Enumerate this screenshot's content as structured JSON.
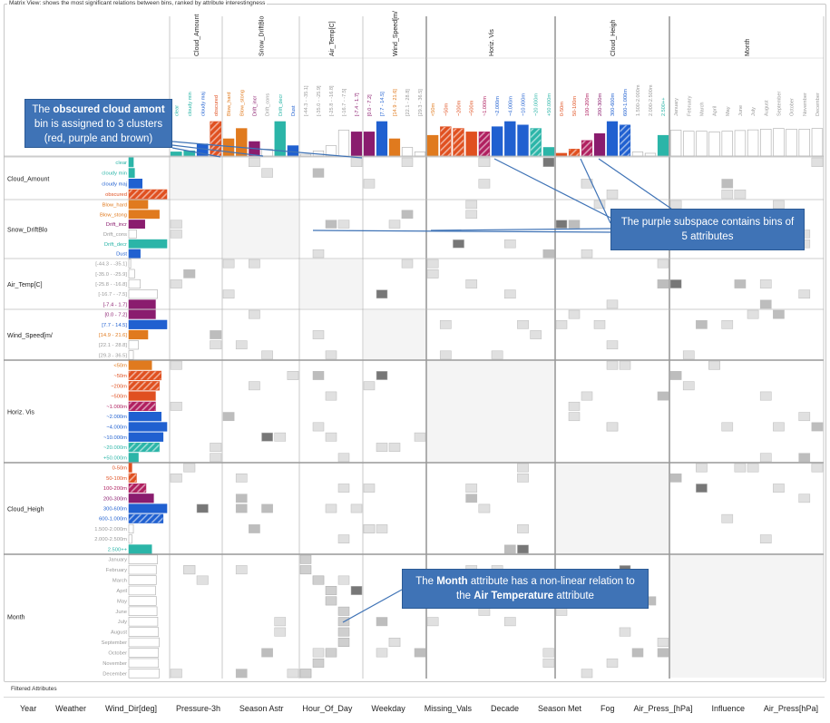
{
  "window_title": "Matrix View: shows the most significant relations between bins, ranked by attribute interestingness",
  "attributes": [
    {
      "name": "Cloud_Amount",
      "bins": [
        "clear",
        "cloudy min",
        "cloudy maj",
        "obscured"
      ],
      "colors": [
        "#2bb5a8",
        "#2bb5a8",
        "#2060d0",
        "#e05020"
      ],
      "hatch": [
        0,
        0,
        0,
        1
      ],
      "hist": [
        0.12,
        0.15,
        0.35,
        1.0
      ]
    },
    {
      "name": "Snow_DriftBlo",
      "bins": [
        "Blow_hard",
        "Blow_stong",
        "Drift_incr",
        "Drift_cons",
        "Drift_decr",
        "Dust"
      ],
      "colors": [
        "#e07a1e",
        "#e07a1e",
        "#8a1c6e",
        "#999999",
        "#2bb5a8",
        "#2060d0"
      ],
      "hatch": [
        0,
        0,
        0,
        0,
        0,
        0
      ],
      "hist": [
        0.5,
        0.8,
        0.42,
        0.2,
        1.0,
        0.3
      ]
    },
    {
      "name": "Air_Temp[C]",
      "bins": [
        "[-44.3 - -35.1]",
        "[-35.0 - -25.9]",
        "[-25.8 - -16.8]",
        "[-16.7 - -7.5]",
        "[-7.4 - 1.7]"
      ],
      "colors": [
        "#999999",
        "#999999",
        "#999999",
        "#999999",
        "#8a1c6e"
      ],
      "hatch": [
        0,
        0,
        0,
        0,
        0
      ],
      "hist": [
        0.05,
        0.15,
        0.3,
        0.75,
        0.7
      ]
    },
    {
      "name": "Wind_Speed[m/",
      "bins": [
        "[0.0 - 7.2]",
        "[7.7 - 14.5]",
        "[14.9 - 21.6]",
        "[22.1 - 28.8]",
        "[29.3 - 36.5]"
      ],
      "colors": [
        "#8a1c6e",
        "#2060d0",
        "#e07a1e",
        "#999999",
        "#999999"
      ],
      "hatch": [
        0,
        0,
        0,
        0,
        0
      ],
      "hist": [
        0.7,
        1.0,
        0.5,
        0.25,
        0.12
      ]
    },
    {
      "name": "Horiz. Vis",
      "bins": [
        "<50m",
        "~50m",
        "~200m",
        "~500m",
        "~1.000m",
        "~2.000m",
        "~4.000m",
        "~10.000m",
        "~20.000m",
        "+50.000m"
      ],
      "colors": [
        "#e07a1e",
        "#e05020",
        "#e05020",
        "#e05020",
        "#b02060",
        "#2060d0",
        "#2060d0",
        "#2060d0",
        "#2bb5a8",
        "#2bb5a8"
      ],
      "hatch": [
        0,
        1,
        1,
        0,
        1,
        0,
        0,
        0,
        1,
        0
      ],
      "hist": [
        0.6,
        0.85,
        0.8,
        0.7,
        0.7,
        0.85,
        1.0,
        0.9,
        0.8,
        0.25
      ]
    },
    {
      "name": "Cloud_Heigh",
      "bins": [
        "0-50m",
        "50-100m",
        "100-200m",
        "200-300m",
        "300-600m",
        "600-1.000m",
        "1.500-2.000m",
        "2.000-2.500m",
        "2.500++"
      ],
      "colors": [
        "#e05020",
        "#e05020",
        "#b02060",
        "#8a1c6e",
        "#2060d0",
        "#2060d0",
        "#999999",
        "#999999",
        "#2bb5a8"
      ],
      "hatch": [
        0,
        1,
        1,
        0,
        0,
        1,
        0,
        0,
        0
      ],
      "hist": [
        0.08,
        0.2,
        0.45,
        0.65,
        1.0,
        0.9,
        0.12,
        0.08,
        0.6
      ]
    },
    {
      "name": "Month",
      "bins": [
        "January",
        "February",
        "March",
        "April",
        "May",
        "June",
        "July",
        "August",
        "September",
        "October",
        "November",
        "December"
      ],
      "colors": [
        "#999999",
        "#999999",
        "#999999",
        "#999999",
        "#999999",
        "#999999",
        "#999999",
        "#999999",
        "#999999",
        "#999999",
        "#999999",
        "#999999"
      ],
      "hatch": [
        0,
        0,
        0,
        0,
        0,
        0,
        0,
        0,
        0,
        0,
        0,
        0
      ],
      "hist": [
        0.75,
        0.72,
        0.72,
        0.7,
        0.72,
        0.74,
        0.76,
        0.78,
        0.8,
        0.78,
        0.78,
        0.8
      ]
    }
  ],
  "callouts": {
    "obscured": {
      "pre": "The ",
      "bold": "obscured cloud amont",
      "post": " bin is assigned to 3 clusters (red, purple and brown)"
    },
    "purple": {
      "text": "The purple subspace contains bins of 5 attributes"
    },
    "month": {
      "pre": "The ",
      "bold1": "Month",
      "mid": " attribute has a non-linear relation to the ",
      "bold2": "Air Temperature",
      "post": " attribute"
    }
  },
  "filtered": {
    "label": "Filtered Attributes",
    "items": [
      "Year",
      "Weather",
      "Wind_Dir[deg]",
      "Pressure-3h",
      "Season Astr",
      "Hour_Of_Day",
      "Weekday",
      "Missing_Vals",
      "Decade",
      "Season Met",
      "Fog",
      "Air_Press_[hPa]",
      "Influence",
      "Air_Press[hPa]"
    ]
  },
  "palette": {
    "gridcell": "#d4d4d4",
    "gridcell_dark": "#8a8a8a",
    "accent": "#3f73b6"
  }
}
